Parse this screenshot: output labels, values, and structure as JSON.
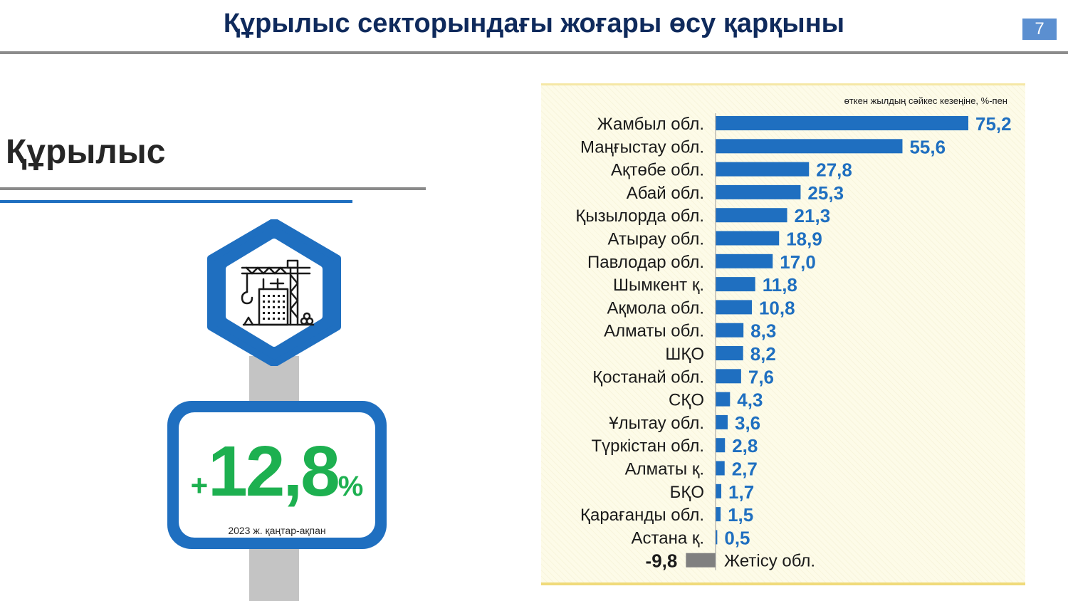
{
  "header": {
    "title": "Құрылыс секторындағы жоғары өсу қарқыны",
    "page_number": "7"
  },
  "section": {
    "title": "Құрылыс"
  },
  "kpi": {
    "sign": "+",
    "value": "12,8",
    "unit": "%",
    "period": "2023 ж. қаңтар-ақпан"
  },
  "icon": "construction-crane-icon",
  "colors": {
    "bar_positive": "#1f6fc0",
    "bar_negative": "#808080",
    "kpi": "#1db050",
    "title": "#0f2a5c"
  },
  "chart_data": {
    "type": "bar",
    "orientation": "horizontal",
    "unit_note": "өткен жылдың сәйкес кезеңіне, %-пен",
    "categories": [
      "Жамбыл обл.",
      "Маңғыстау обл.",
      "Ақтөбе обл.",
      "Абай обл.",
      "Қызылорда обл.",
      "Атырау обл.",
      "Павлодар обл.",
      "Шымкент қ.",
      "Ақмола обл.",
      "Алматы обл.",
      "ШҚО",
      "Қостанай обл.",
      "СҚО",
      "Ұлытау обл.",
      "Түркістан обл.",
      "Алматы қ.",
      "БҚО",
      "Қарағанды обл.",
      "Астана қ.",
      "Жетісу обл."
    ],
    "values": [
      75.2,
      55.6,
      27.8,
      25.3,
      21.3,
      18.9,
      17.0,
      11.8,
      10.8,
      8.3,
      8.2,
      7.6,
      4.3,
      3.6,
      2.8,
      2.7,
      1.7,
      1.5,
      0.5,
      -9.8
    ],
    "value_labels": [
      "75,2",
      "55,6",
      "27,8",
      "25,3",
      "21,3",
      "18,9",
      "17,0",
      "11,8",
      "10,8",
      "8,3",
      "8,2",
      "7,6",
      "4,3",
      "3,6",
      "2,8",
      "2,7",
      "1,7",
      "1,5",
      "0,5",
      "-9,8"
    ],
    "xlim": [
      -9.8,
      75.2
    ],
    "grid": false,
    "legend": "none"
  }
}
